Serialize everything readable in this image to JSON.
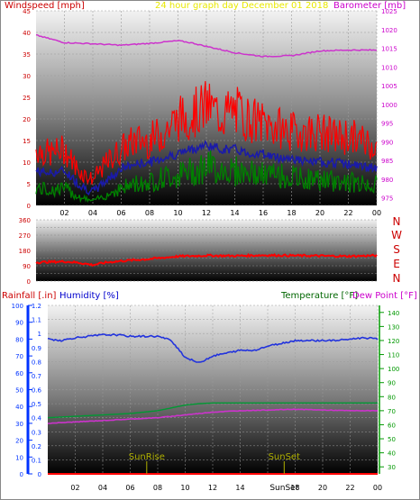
{
  "header": {
    "windspeed_label": "Windspeed [mph]",
    "title": "24 hour graph day   December 01 2018",
    "barometer_label": "Barometer [mb]"
  },
  "colors": {
    "windspeed": "#cc0000",
    "title": "#e8e800",
    "barometer": "#cc00cc",
    "rainfall": "#cc0000",
    "humidity": "#0000cc",
    "temperature": "#006600",
    "dewpoint": "#cc00cc",
    "sunrise": "#b0b000",
    "axis_blue": "#0033ff",
    "axis_green": "#009900"
  },
  "panel2": {
    "direction_labels": [
      "N",
      "W",
      "S",
      "E",
      "N"
    ]
  },
  "panel3": {
    "rainfall_label": "Rainfall [.in]",
    "humidity_label": "Humidity [%]",
    "temperature_label": "Temperature [°F]",
    "dewpoint_label": "Dew Point [°F]",
    "sunrise_label": "SunRise",
    "sunset_label": "SunSet",
    "sunset_bottom_label": "SunSet"
  },
  "chart_data": [
    {
      "type": "line",
      "title": "24 hour graph day   December 01 2018",
      "x_ticks": [
        "02",
        "04",
        "06",
        "08",
        "10",
        "12",
        "14",
        "16",
        "18",
        "20",
        "22",
        "00"
      ],
      "y_left": {
        "label": "Windspeed [mph]",
        "range": [
          0,
          45
        ],
        "ticks": [
          0,
          5,
          10,
          15,
          20,
          25,
          30,
          35,
          40,
          45
        ]
      },
      "y_right": {
        "label": "Barometer [mb]",
        "range": [
          973,
          1025
        ],
        "ticks": [
          975,
          980,
          985,
          990,
          995,
          1000,
          1005,
          1010,
          1015,
          1020,
          1025
        ]
      },
      "series": [
        {
          "name": "Barometer [mb]",
          "axis": "right",
          "x": [
            0,
            2,
            4,
            6,
            8,
            10,
            11,
            12,
            14,
            16,
            18,
            20,
            22,
            24
          ],
          "values": [
            1018.5,
            1016.5,
            1016.2,
            1015.8,
            1016.3,
            1017.0,
            1016.4,
            1015.5,
            1013.8,
            1012.8,
            1013.0,
            1014.3,
            1014.5,
            1014.5
          ]
        },
        {
          "name": "Gust",
          "axis": "left",
          "x": [
            0,
            1,
            2,
            3,
            4,
            5,
            6,
            7,
            8,
            9,
            10,
            11,
            12,
            13,
            14,
            15,
            16,
            17,
            18,
            19,
            20,
            21,
            22,
            23,
            24
          ],
          "values": [
            13,
            12,
            13,
            8,
            6,
            10,
            13,
            15,
            15,
            17,
            20,
            21,
            23,
            21,
            22,
            20,
            19,
            18,
            17,
            17,
            17,
            16,
            16,
            15,
            14
          ]
        },
        {
          "name": "Average",
          "axis": "left",
          "x": [
            0,
            1,
            2,
            3,
            4,
            5,
            6,
            7,
            8,
            9,
            10,
            11,
            12,
            13,
            14,
            15,
            16,
            17,
            18,
            19,
            20,
            21,
            22,
            23,
            24
          ],
          "values": [
            8,
            7.5,
            8,
            5,
            3,
            6,
            8.5,
            9.5,
            10,
            11,
            12,
            13,
            14,
            13,
            13,
            12,
            12,
            11,
            11,
            10,
            10,
            10,
            9.5,
            9,
            8.5
          ]
        },
        {
          "name": "Lull",
          "axis": "left",
          "x": [
            0,
            1,
            2,
            3,
            4,
            5,
            6,
            7,
            8,
            9,
            10,
            11,
            12,
            13,
            14,
            15,
            16,
            17,
            18,
            19,
            20,
            21,
            22,
            23,
            24
          ],
          "values": [
            4,
            3.5,
            4,
            2,
            1,
            2.5,
            4,
            5,
            5.5,
            6.5,
            7,
            8,
            9,
            8.5,
            8,
            7.5,
            7,
            7,
            6.5,
            6,
            6,
            5.5,
            5.5,
            5,
            5
          ]
        }
      ]
    },
    {
      "type": "line",
      "x_ticks": [
        "02",
        "04",
        "06",
        "08",
        "10",
        "12",
        "14",
        "16",
        "18",
        "20",
        "22",
        "00"
      ],
      "y_left": {
        "range": [
          0,
          360
        ],
        "ticks": [
          0,
          45,
          90,
          135,
          180,
          225,
          270,
          315,
          360
        ]
      },
      "y_right_labels": [
        "N",
        "W",
        "S",
        "E",
        "N"
      ],
      "series": [
        {
          "name": "Wind direction",
          "x": [
            0,
            2,
            3,
            4,
            5,
            6,
            8,
            10,
            12,
            14,
            16,
            18,
            20,
            22,
            24
          ],
          "values": [
            110,
            115,
            108,
            95,
            110,
            118,
            130,
            145,
            150,
            148,
            152,
            150,
            148,
            146,
            150
          ]
        }
      ]
    },
    {
      "type": "line",
      "x_ticks": [
        "02",
        "04",
        "06",
        "08",
        "10",
        "12",
        "14",
        "16",
        "18",
        "20",
        "22",
        "00"
      ],
      "y_rain": {
        "label": "Rainfall [.in]",
        "range": [
          0,
          100
        ],
        "ticks": [
          0,
          10,
          20,
          30,
          40,
          50,
          60,
          70,
          80,
          90,
          100
        ]
      },
      "y_humidity": {
        "label": "Humidity [%]",
        "range": [
          0,
          1.2
        ],
        "ticks": [
          0,
          0.1,
          0.2,
          0.3,
          0.4,
          0.5,
          0.6,
          0.7,
          0.8,
          0.9,
          1,
          1.1,
          1.2
        ]
      },
      "y_temperature": {
        "label": "Temperature [°F]",
        "range": [
          25,
          145
        ],
        "ticks": [
          30,
          40,
          50,
          60,
          70,
          80,
          90,
          100,
          110,
          120,
          130,
          140
        ]
      },
      "series": [
        {
          "name": "Humidity [%]",
          "x": [
            0,
            1,
            2,
            3,
            4,
            5,
            6,
            7,
            8,
            9,
            10,
            11,
            12,
            13,
            14,
            15,
            16,
            17,
            18,
            19,
            20,
            21,
            22,
            23,
            24
          ],
          "values": [
            96,
            95,
            97,
            98,
            99,
            99,
            98,
            98,
            98,
            95,
            83,
            79,
            84,
            86,
            88,
            88,
            91,
            93,
            95,
            95,
            95,
            95,
            96,
            97,
            96
          ]
        },
        {
          "name": "Temperature [°F]",
          "x": [
            0,
            2,
            4,
            6,
            8,
            9,
            10,
            11,
            12,
            14,
            16,
            18,
            20,
            22,
            24
          ],
          "values": [
            65,
            66,
            67,
            68,
            70,
            72,
            74,
            75,
            75.5,
            75.5,
            75.5,
            75.5,
            75.5,
            75.5,
            75.5
          ]
        },
        {
          "name": "Dew Point [°F]",
          "x": [
            0,
            2,
            4,
            6,
            8,
            9,
            10,
            11,
            12,
            14,
            16,
            18,
            20,
            22,
            24
          ],
          "values": [
            61,
            62,
            63,
            64,
            65,
            66,
            67,
            68,
            69,
            70,
            70.5,
            71,
            70.5,
            70,
            70
          ]
        },
        {
          "name": "Rainfall [.in]",
          "x": [
            0,
            24
          ],
          "values": [
            0,
            0
          ]
        }
      ],
      "markers": [
        {
          "label": "SunRise",
          "x": 7.2
        },
        {
          "label": "SunSet",
          "x": 17.2
        }
      ]
    }
  ]
}
